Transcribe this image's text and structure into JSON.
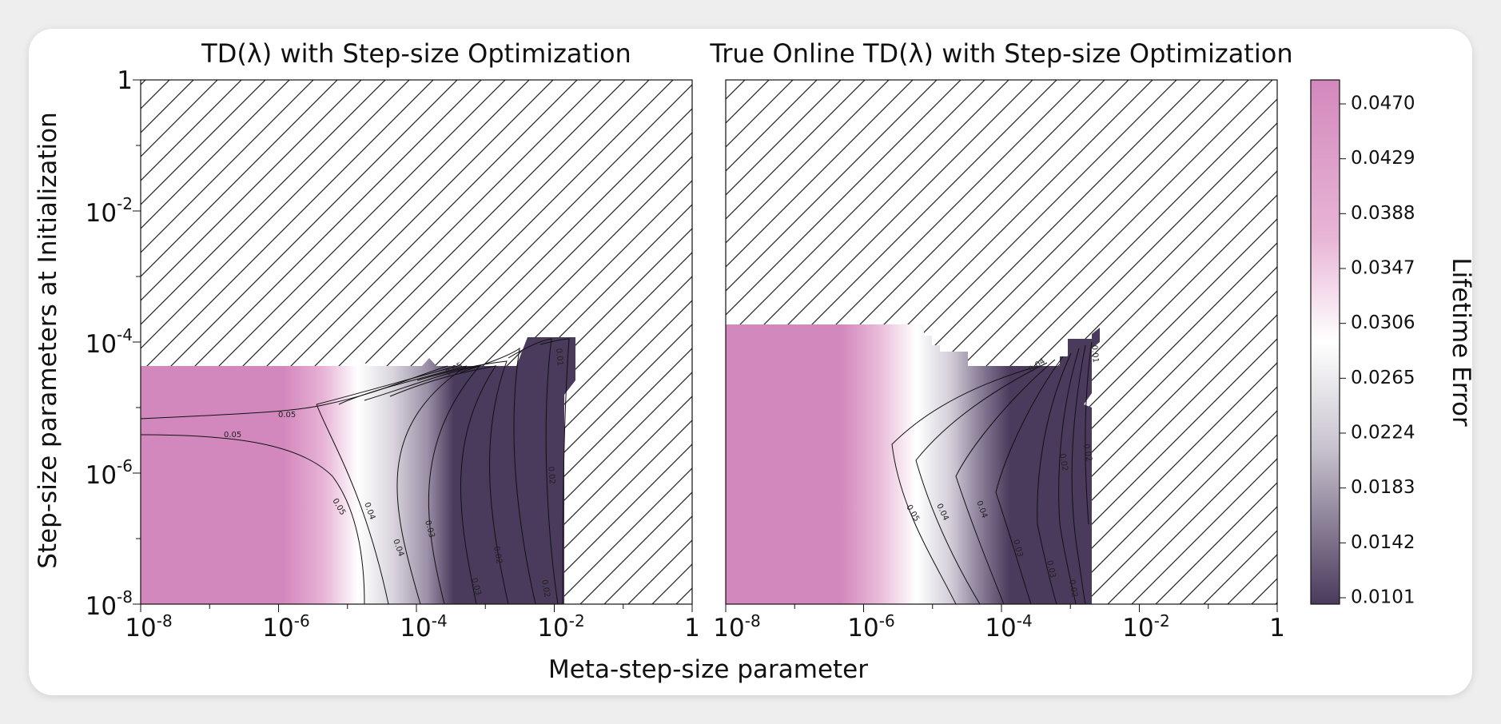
{
  "chart_data": [
    {
      "type": "heatmap",
      "title": "TD(λ) with Step-size Optimization",
      "xlabel": "Meta-step-size parameter",
      "ylabel": "Step-size parameters at Initialization",
      "xscale": "log",
      "yscale": "log",
      "xlim": [
        1e-08,
        1
      ],
      "ylim": [
        1e-08,
        1
      ],
      "x_tick_labels": [
        {
          "base": "10",
          "exp": "-8"
        },
        {
          "base": "10",
          "exp": "-6"
        },
        {
          "base": "10",
          "exp": "-4"
        },
        {
          "base": "10",
          "exp": "-2"
        },
        {
          "base": "1",
          "exp": ""
        }
      ],
      "y_tick_labels": [
        {
          "base": "10",
          "exp": "-8"
        },
        {
          "base": "10",
          "exp": "-6"
        },
        {
          "base": "10",
          "exp": "-4"
        },
        {
          "base": "10",
          "exp": "-2"
        },
        {
          "base": "1",
          "exp": ""
        }
      ],
      "hatched_region": "diverged / no data",
      "contour_labels": [
        "0.05",
        "0.05",
        "0.05",
        "0.04",
        "0.04",
        "0.03",
        "0.03",
        "0.02",
        "0.02",
        "0.02",
        "0.05",
        "0.01"
      ]
    },
    {
      "type": "heatmap",
      "title": "True Online TD(λ) with Step-size Optimization",
      "xlabel": "Meta-step-size parameter",
      "xscale": "log",
      "yscale": "log",
      "xlim": [
        1e-08,
        1
      ],
      "ylim": [
        1e-08,
        1
      ],
      "x_tick_labels": [
        {
          "base": "10",
          "exp": "-8"
        },
        {
          "base": "10",
          "exp": "-6"
        },
        {
          "base": "10",
          "exp": "-4"
        },
        {
          "base": "10",
          "exp": "-2"
        },
        {
          "base": "1",
          "exp": ""
        }
      ],
      "contour_labels": [
        "0.05",
        "0.04",
        "0.04",
        "0.03",
        "0.03",
        "0.02",
        "0.02",
        "0.02",
        "0.04",
        "0.01"
      ]
    }
  ],
  "colorbar": {
    "label": "Lifetime Error",
    "ticks": [
      "0.0470",
      "0.0429",
      "0.0388",
      "0.0347",
      "0.0306",
      "0.0265",
      "0.0224",
      "0.0183",
      "0.0142",
      "0.0101"
    ],
    "colors": {
      "high": "#d388bd",
      "mid": "#ffffff",
      "low": "#4a3a5c"
    }
  }
}
